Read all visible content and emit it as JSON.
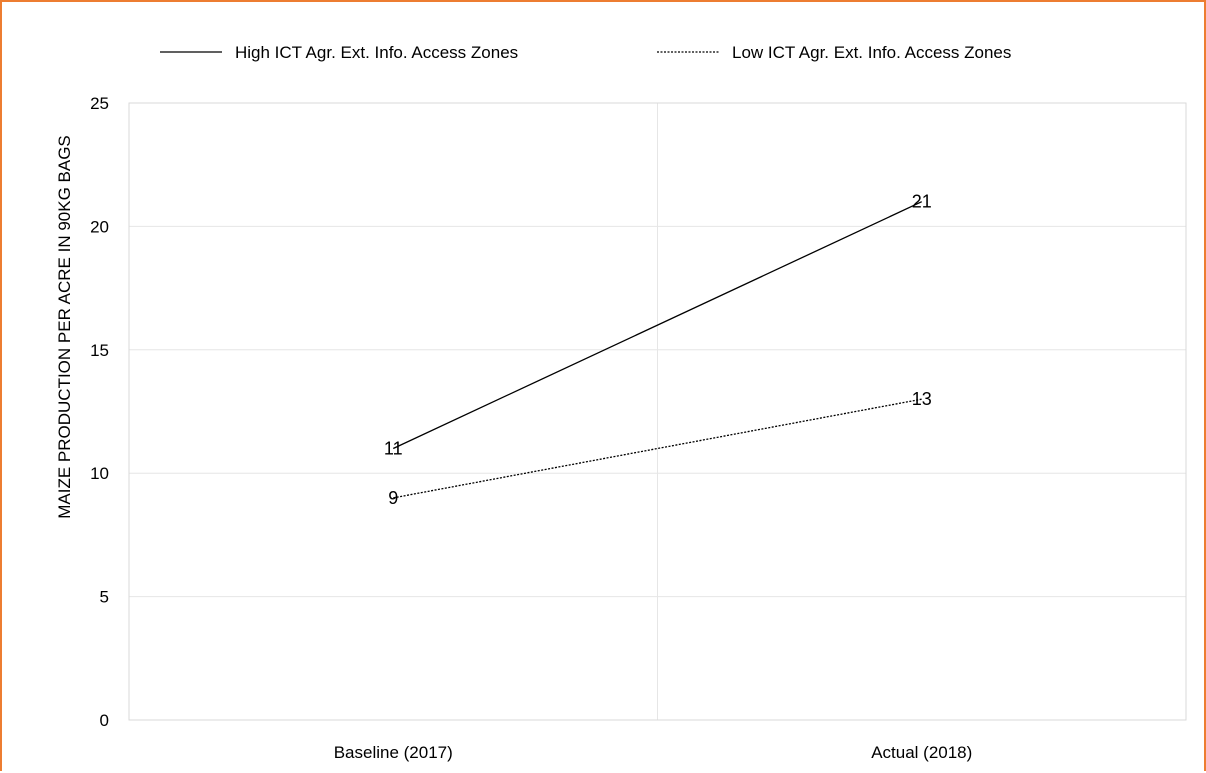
{
  "chart_data": {
    "type": "line",
    "categories": [
      "Baseline (2017)",
      "Actual (2018)"
    ],
    "series": [
      {
        "name": "High ICT Agr. Ext. Info. Access Zones",
        "values": [
          11,
          21
        ],
        "line_style": "solid",
        "color": "#000000"
      },
      {
        "name": "Low ICT Agr. Ext. Info. Access Zones",
        "values": [
          9,
          13
        ],
        "line_style": "dashed",
        "color": "#000000"
      }
    ],
    "ylabel": "MAIZE PRODUCTION PER ACRE IN  90KG BAGS",
    "xlabel": "",
    "ylim": [
      0,
      25
    ],
    "yticks": [
      0,
      5,
      10,
      15,
      20,
      25
    ],
    "grid": true,
    "legend_position": "top",
    "data_labels": true,
    "colors": {
      "border": "#ED7D31",
      "gridline": "#E6E6E6",
      "plot_border": "#D9D9D9"
    }
  }
}
